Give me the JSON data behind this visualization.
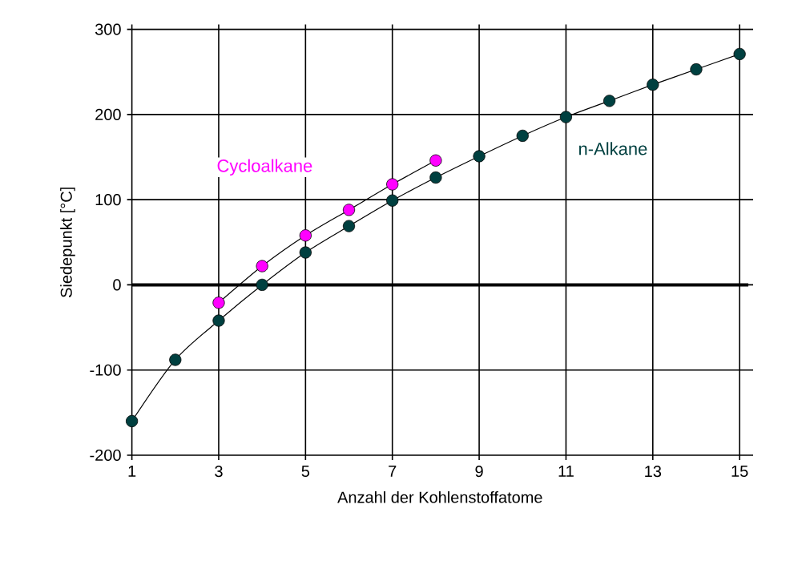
{
  "chart_data": {
    "type": "line",
    "xlabel": "Anzahl der Kohlenstoffatome",
    "ylabel": "Siedepunkt [°C]",
    "xlim": [
      1,
      15.2
    ],
    "ylim": [
      -200,
      300
    ],
    "xticks": [
      1,
      3,
      5,
      7,
      9,
      11,
      13,
      15
    ],
    "yticks": [
      -200,
      -100,
      0,
      100,
      200,
      300
    ],
    "grid": true,
    "legend": false,
    "marker": "circle",
    "ref_lines": [
      {
        "axis": "y",
        "value": 0,
        "color": "#000000"
      }
    ],
    "series": [
      {
        "name": "Cycloalkane",
        "color": "#ff00ff",
        "x": [
          3,
          4,
          5,
          6,
          7,
          8
        ],
        "values": [
          -21,
          22,
          58,
          88,
          118,
          146
        ]
      },
      {
        "name": "n-Alkane",
        "color": "#004040",
        "x": [
          1,
          2,
          3,
          4,
          5,
          6,
          7,
          8,
          9,
          10,
          11,
          12,
          13,
          14,
          15
        ],
        "values": [
          -160,
          -88,
          -42,
          0,
          38,
          69,
          99,
          126,
          151,
          175,
          197,
          216,
          235,
          253,
          271
        ]
      }
    ]
  }
}
